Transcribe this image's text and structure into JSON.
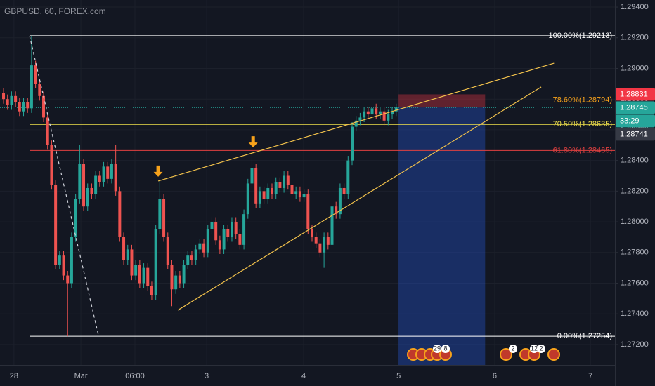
{
  "chart_data": {
    "type": "candlestick",
    "title": "GBPUSD, 60, FOREX.com",
    "open": [
      1.2884,
      1.288,
      1.2876,
      1.2882,
      1.2878,
      1.2872,
      1.2878,
      1.2874,
      1.2902,
      1.289,
      1.2882,
      1.2868,
      1.285,
      1.2824,
      1.2772,
      1.2778,
      1.2765,
      1.276,
      1.279,
      1.2815,
      1.2838,
      1.281,
      1.2822,
      1.2818,
      1.283,
      1.2826,
      1.2836,
      1.2828,
      1.2838,
      1.282,
      1.279,
      1.2775,
      1.2782,
      1.2765,
      1.2772,
      1.276,
      1.277,
      1.2758,
      1.2752,
      1.2795,
      1.2815,
      1.279,
      1.2772,
      1.2756,
      1.2765,
      1.276,
      1.2772,
      1.2778,
      1.2775,
      1.2782,
      1.2786,
      1.278,
      1.2795,
      1.28,
      1.2788,
      1.2782,
      1.2795,
      1.279,
      1.28,
      1.2792,
      1.2785,
      1.2805,
      1.2825,
      1.2835,
      1.2812,
      1.282,
      1.2815,
      1.2822,
      1.2818,
      1.2826,
      1.2822,
      1.283,
      1.2824,
      1.2818,
      1.282,
      1.2816,
      1.2818,
      1.2795,
      1.279,
      1.2786,
      1.278,
      1.279,
      1.2785,
      1.281,
      1.2805,
      1.2822,
      1.2818,
      1.284,
      1.2862,
      1.2866,
      1.2868,
      1.2872,
      1.287,
      1.2874,
      1.287,
      1.2872,
      1.2866,
      1.287,
      1.2872
    ],
    "high": [
      1.2887,
      1.2883,
      1.2885,
      1.2885,
      1.2881,
      1.2881,
      1.2881,
      1.29213,
      1.2905,
      1.2893,
      1.2885,
      1.2871,
      1.2853,
      1.2827,
      1.2781,
      1.2781,
      1.2768,
      1.2793,
      1.2818,
      1.285,
      1.2841,
      1.2825,
      1.2825,
      1.2833,
      1.2833,
      1.2839,
      1.2839,
      1.2841,
      1.285,
      1.2823,
      1.2793,
      1.2785,
      1.2785,
      1.2775,
      1.2775,
      1.2773,
      1.2773,
      1.2761,
      1.2798,
      1.28266,
      1.2818,
      1.2793,
      1.2775,
      1.2768,
      1.2768,
      1.2775,
      1.2781,
      1.2781,
      1.2785,
      1.2789,
      1.2789,
      1.2798,
      1.2803,
      1.2803,
      1.2791,
      1.2798,
      1.2798,
      1.2803,
      1.2803,
      1.2795,
      1.2808,
      1.2828,
      1.28457,
      1.2838,
      1.2823,
      1.2823,
      1.2825,
      1.2825,
      1.2829,
      1.2829,
      1.2833,
      1.2833,
      1.2827,
      1.2823,
      1.2823,
      1.2821,
      1.2821,
      1.2798,
      1.2793,
      1.2789,
      1.2793,
      1.2793,
      1.2813,
      1.2813,
      1.2825,
      1.2825,
      1.2843,
      1.2865,
      1.2869,
      1.2871,
      1.2875,
      1.2875,
      1.2877,
      1.2877,
      1.2875,
      1.2875,
      1.2873,
      1.2875,
      1.2877
    ],
    "low": [
      1.2877,
      1.2873,
      1.2873,
      1.2875,
      1.2869,
      1.2869,
      1.2871,
      1.2871,
      1.2887,
      1.2879,
      1.2865,
      1.2847,
      1.2821,
      1.2769,
      1.2769,
      1.2762,
      1.27254,
      1.2757,
      1.2787,
      1.2812,
      1.2807,
      1.2807,
      1.2815,
      1.2815,
      1.2823,
      1.2823,
      1.2825,
      1.2825,
      1.2817,
      1.2787,
      1.2772,
      1.2772,
      1.2762,
      1.2762,
      1.2757,
      1.2757,
      1.2755,
      1.2749,
      1.2749,
      1.2792,
      1.2787,
      1.2769,
      1.2745,
      1.2753,
      1.2757,
      1.2757,
      1.2769,
      1.2772,
      1.2772,
      1.2779,
      1.2777,
      1.2777,
      1.2792,
      1.2785,
      1.2779,
      1.2779,
      1.2787,
      1.2787,
      1.2789,
      1.2782,
      1.2782,
      1.2802,
      1.2822,
      1.2809,
      1.2809,
      1.2812,
      1.2812,
      1.2815,
      1.2815,
      1.2819,
      1.2819,
      1.2821,
      1.2815,
      1.2815,
      1.2813,
      1.2813,
      1.2792,
      1.2787,
      1.2783,
      1.2777,
      1.277,
      1.2782,
      1.2782,
      1.2802,
      1.2802,
      1.2815,
      1.2815,
      1.2837,
      1.2859,
      1.2863,
      1.2865,
      1.2867,
      1.2867,
      1.2867,
      1.2867,
      1.2863,
      1.2863,
      1.2867,
      1.2869
    ],
    "close": [
      1.288,
      1.2876,
      1.2882,
      1.2878,
      1.2872,
      1.2878,
      1.2874,
      1.2902,
      1.289,
      1.2882,
      1.2868,
      1.285,
      1.2824,
      1.2772,
      1.2778,
      1.2765,
      1.276,
      1.279,
      1.2815,
      1.2838,
      1.281,
      1.2822,
      1.2818,
      1.283,
      1.2826,
      1.2836,
      1.2828,
      1.2838,
      1.282,
      1.279,
      1.2775,
      1.2782,
      1.2765,
      1.2772,
      1.276,
      1.277,
      1.2758,
      1.2752,
      1.2795,
      1.2815,
      1.279,
      1.2772,
      1.2756,
      1.2765,
      1.276,
      1.2772,
      1.2778,
      1.2775,
      1.2782,
      1.2786,
      1.278,
      1.2795,
      1.28,
      1.2788,
      1.2782,
      1.2795,
      1.279,
      1.28,
      1.2792,
      1.2785,
      1.2805,
      1.2825,
      1.2835,
      1.2812,
      1.282,
      1.2815,
      1.2822,
      1.2818,
      1.2826,
      1.2822,
      1.283,
      1.2824,
      1.2818,
      1.282,
      1.2816,
      1.2818,
      1.2795,
      1.279,
      1.2786,
      1.278,
      1.279,
      1.2785,
      1.281,
      1.2805,
      1.2822,
      1.2818,
      1.284,
      1.2862,
      1.2866,
      1.2868,
      1.2872,
      1.287,
      1.2874,
      1.287,
      1.2872,
      1.2866,
      1.287,
      1.2872,
      1.28745
    ],
    "up_color": "#26a69a",
    "down_color": "#ef5350",
    "xlim": [
      -0.88,
      152.6
    ],
    "xticks": [
      {
        "value": 2.6,
        "label": "28"
      },
      {
        "value": 19.3,
        "label": "Mar"
      },
      {
        "value": 32.8,
        "label": "06:00"
      },
      {
        "value": 50.7,
        "label": "3"
      },
      {
        "value": 74.9,
        "label": "4"
      },
      {
        "value": 98.6,
        "label": "5"
      },
      {
        "value": 122.6,
        "label": "6"
      },
      {
        "value": 146.5,
        "label": "7"
      }
    ],
    "ylim": [
      1.29446,
      1.27067
    ],
    "yticks": [
      {
        "value": 1.294,
        "label": "1.29400"
      },
      {
        "value": 1.292,
        "label": "1.29200"
      },
      {
        "value": 1.29,
        "label": "1.29000"
      },
      {
        "value": 1.288,
        "label": "1.28800"
      },
      {
        "value": 1.286,
        "label": "1.28600"
      },
      {
        "value": 1.284,
        "label": "1.28400"
      },
      {
        "value": 1.282,
        "label": "1.28200"
      },
      {
        "value": 1.28,
        "label": "1.28000"
      },
      {
        "value": 1.278,
        "label": "1.27800"
      },
      {
        "value": 1.276,
        "label": "1.27600"
      },
      {
        "value": 1.274,
        "label": "1.27400"
      },
      {
        "value": 1.272,
        "label": "1.27200"
      }
    ],
    "grid": true,
    "fib_start": 6.5,
    "fib": [
      {
        "value": 1.29213,
        "label": "100.00%(1.29213)",
        "color": "#ffffff"
      },
      {
        "value": 1.28794,
        "label": "78.60%(1.28794)",
        "color": "#f7a21b"
      },
      {
        "value": 1.28635,
        "label": "70.50%(1.28635)",
        "color": "#f0e04b"
      },
      {
        "value": 1.28465,
        "label": "61.80%(1.28465)",
        "color": "#e04040"
      },
      {
        "value": 1.27254,
        "label": "0.00%(1.27254)",
        "color": "#ffffff"
      }
    ],
    "trendlines": [
      {
        "x": [
          38.6,
          137.4
        ],
        "y": [
          1.28266,
          1.29034
        ],
        "color": "#f0c04b"
      },
      {
        "x": [
          43.5,
          134.2
        ],
        "y": [
          1.27424,
          1.28879
        ],
        "color": "#f0c04b"
      },
      {
        "x": [
          6.5,
          23.7
        ],
        "y": [
          1.29213,
          1.27259
        ],
        "color": "#d1d4dc",
        "dashed": true
      }
    ],
    "position": {
      "start": 98.6,
      "end": 120.2,
      "entry": 1.28745,
      "stop": 1.28831,
      "target": 1.27067
    },
    "arrows": [
      {
        "x": 38.6,
        "y": 1.28266
      },
      {
        "x": 62.3,
        "y": 1.28457
      }
    ],
    "price_tags": [
      {
        "value": 1.28831,
        "label": "1.28831",
        "color": "#f23645"
      },
      {
        "value": 1.28745,
        "label": "1.28745",
        "color": "#26a69a"
      },
      {
        "label": "33:29",
        "color": "#26a69a"
      },
      {
        "value": 1.28741,
        "label": "1.28741",
        "color": "#363a45"
      }
    ],
    "event_badges": [
      "29",
      "8",
      "2",
      "12",
      "2"
    ]
  }
}
